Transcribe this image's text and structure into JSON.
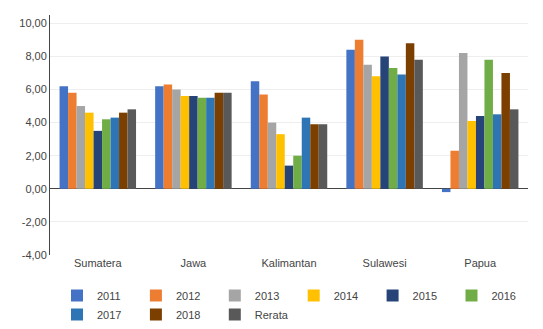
{
  "chart_data": {
    "type": "bar",
    "categories": [
      "Sumatera",
      "Jawa",
      "Kalimantan",
      "Sulawesi",
      "Papua"
    ],
    "series": [
      {
        "name": "2011",
        "color": "#4472C4",
        "values": [
          6.2,
          6.2,
          6.5,
          8.4,
          -0.2
        ]
      },
      {
        "name": "2012",
        "color": "#ED7D31",
        "values": [
          5.8,
          6.3,
          5.7,
          9.0,
          2.3
        ]
      },
      {
        "name": "2013",
        "color": "#A5A5A5",
        "values": [
          5.0,
          6.0,
          4.0,
          7.5,
          8.2
        ]
      },
      {
        "name": "2014",
        "color": "#FFC000",
        "values": [
          4.6,
          5.6,
          3.3,
          6.8,
          4.1
        ]
      },
      {
        "name": "2015",
        "color": "#264478",
        "values": [
          3.5,
          5.6,
          1.4,
          8.0,
          4.4
        ]
      },
      {
        "name": "2016",
        "color": "#70AD47",
        "values": [
          4.2,
          5.5,
          2.0,
          7.3,
          7.8
        ]
      },
      {
        "name": "2017",
        "color": "#2E75B6",
        "values": [
          4.3,
          5.5,
          4.3,
          6.9,
          4.5
        ]
      },
      {
        "name": "2018",
        "color": "#7B3F00",
        "values": [
          4.6,
          5.8,
          3.9,
          8.8,
          7.0
        ]
      },
      {
        "name": "Rerata",
        "color": "#595959",
        "values": [
          4.8,
          5.8,
          3.9,
          7.8,
          4.8
        ]
      }
    ],
    "ylim": [
      -4.0,
      10.5
    ],
    "yticks": [
      {
        "value": -4.0,
        "label": "-4,00"
      },
      {
        "value": -2.0,
        "label": "-2,00"
      },
      {
        "value": 0.0,
        "label": "0,00"
      },
      {
        "value": 2.0,
        "label": "2,00"
      },
      {
        "value": 4.0,
        "label": "4,00"
      },
      {
        "value": 6.0,
        "label": "6,00"
      },
      {
        "value": 8.0,
        "label": "8,00"
      },
      {
        "value": 10.0,
        "label": "10,00"
      }
    ],
    "grid": true,
    "legend": "bottom"
  }
}
